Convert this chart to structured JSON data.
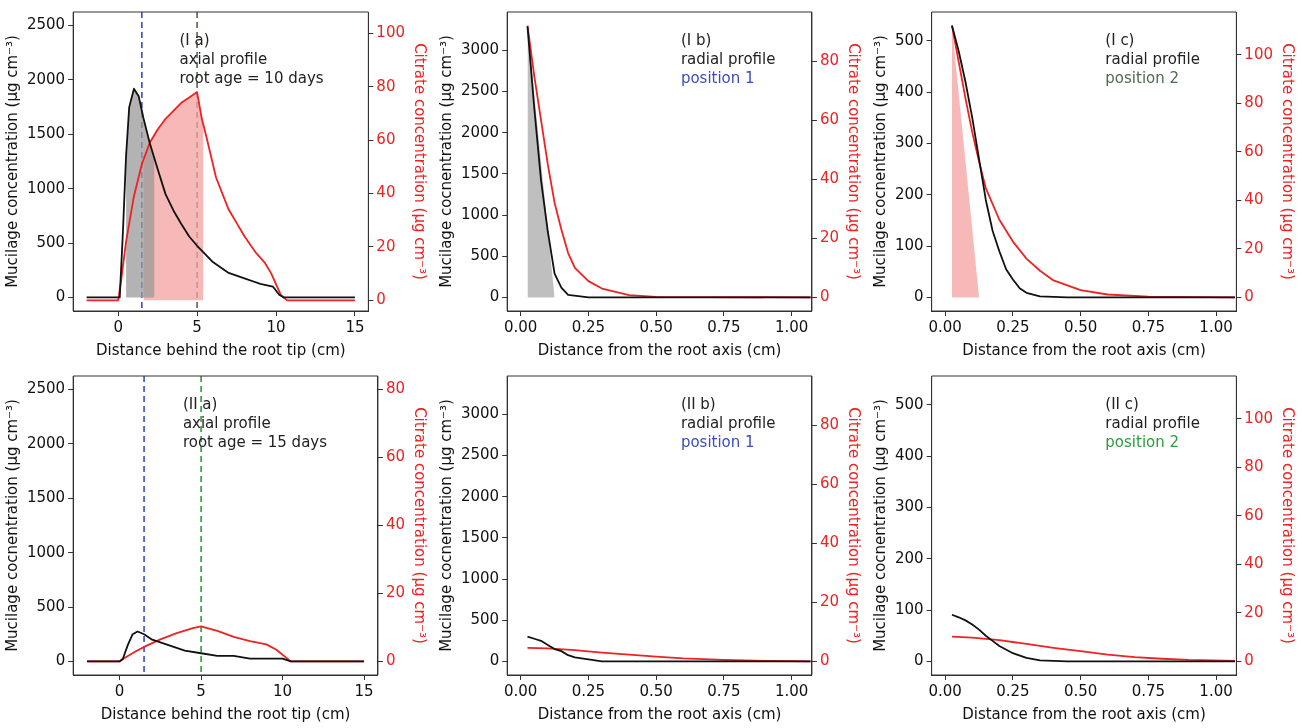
{
  "chart_data": [
    {
      "type": "line",
      "xlabel": "Distance behind the root tip (cm)",
      "ylabel": "Mucilage concentration (μg cm⁻³)",
      "y2label": "Citrate concentration (μg cm⁻³)",
      "xlim": [
        -2.85,
        15.85
      ],
      "ylim": [
        -125,
        2625
      ],
      "y2lim": [
        -4,
        108
      ],
      "xticks": [
        0,
        5,
        10,
        15
      ],
      "yticks": [
        0,
        500,
        1000,
        1500,
        2000,
        2500
      ],
      "y2ticks": [
        0,
        20,
        40,
        60,
        80,
        100
      ],
      "series": [
        {
          "type": "area",
          "color": "#999999",
          "x": [
            0.5,
            0.7,
            1.0,
            1.3,
            1.6,
            2.0,
            2.3
          ],
          "values": [
            1300,
            1750,
            1920,
            1850,
            1650,
            1420,
            1270
          ]
        },
        {
          "type": "area",
          "color": "#f4a0a0",
          "axis": "y2",
          "x": [
            1.6,
            2,
            2.5,
            3,
            3.5,
            4,
            4.5,
            5,
            5.2,
            5.4
          ],
          "values": [
            51,
            59,
            64,
            68,
            71,
            74,
            76,
            78,
            71,
            65
          ]
        },
        {
          "type": "line",
          "color": "#111111",
          "x": [
            -2,
            0,
            0.1,
            0.3,
            0.5,
            0.7,
            1.0,
            1.3,
            1.6,
            2.0,
            2.5,
            3,
            3.5,
            4,
            4.5,
            5,
            6,
            7,
            8,
            9,
            9.8,
            10.2,
            10.5,
            15
          ],
          "values": [
            0,
            0,
            0,
            600,
            1300,
            1750,
            1920,
            1850,
            1650,
            1420,
            1180,
            950,
            800,
            675,
            560,
            475,
            325,
            225,
            175,
            125,
            100,
            25,
            0,
            0
          ]
        },
        {
          "type": "line",
          "color": "#ee2222",
          "axis": "y2",
          "x": [
            -2,
            0,
            0.2,
            0.5,
            1,
            1.5,
            2,
            2.5,
            3,
            3.5,
            4,
            4.5,
            5,
            5.3,
            5.6,
            6.2,
            7,
            7.5,
            8,
            8.7,
            9.3,
            9.7,
            10.3,
            10.7,
            15
          ],
          "values": [
            0,
            0,
            8,
            22,
            39,
            51,
            59,
            64,
            68,
            71,
            74,
            76,
            78,
            68,
            61,
            46,
            34,
            29,
            24,
            18,
            14,
            10,
            2,
            0,
            0
          ]
        }
      ],
      "ref_lines": [
        {
          "axis": "x",
          "value": 1.5,
          "color": "#3b4cc0",
          "line_style": "dashed"
        },
        {
          "axis": "x",
          "value": 5,
          "color": "#4d6b4d",
          "line_style": "dashed"
        }
      ],
      "annotations": [
        "(I a)",
        "axial profile",
        "root age = 10 days"
      ]
    },
    {
      "type": "line",
      "xlabel": "Distance from the root axis (cm)",
      "ylabel": "Mucilage cocnentration (μg cm⁻³)",
      "y2label": "Citrate concentration (μg cm⁻³)",
      "xlim": [
        -0.05,
        1.075
      ],
      "ylim": [
        -165,
        3465
      ],
      "y2lim": [
        -4.6,
        96.6
      ],
      "xticks": [
        {
          "value": 0,
          "label": "0.00"
        },
        {
          "value": 0.25,
          "label": "0.25"
        },
        {
          "value": 0.5,
          "label": "0.50"
        },
        {
          "value": 0.75,
          "label": "0.75"
        },
        {
          "value": 1,
          "label": "1.00"
        }
      ],
      "yticks": [
        0,
        500,
        1000,
        1500,
        2000,
        2500,
        3000
      ],
      "y2ticks": [
        0,
        20,
        40,
        60,
        80
      ],
      "series": [
        {
          "type": "area",
          "color": "#aaaaaa",
          "x": [
            0.025,
            0.125
          ],
          "values": [
            3290,
            0
          ]
        },
        {
          "type": "line",
          "color": "#111111",
          "x": [
            0.025,
            0.05,
            0.075,
            0.1,
            0.125,
            0.15,
            0.175,
            0.25,
            1.07
          ],
          "values": [
            3290,
            2300,
            1420,
            800,
            290,
            120,
            30,
            0,
            0
          ]
        },
        {
          "type": "line",
          "color": "#ee2222",
          "axis": "y2",
          "x": [
            0.025,
            0.05,
            0.075,
            0.1,
            0.125,
            0.15,
            0.175,
            0.2,
            0.25,
            0.3,
            0.4,
            0.5,
            1.07
          ],
          "values": [
            92,
            75,
            60,
            45,
            32,
            23,
            15,
            10,
            5.5,
            3,
            0.8,
            0.2,
            0
          ]
        }
      ],
      "annotations": [
        "(I b)",
        "radial profile",
        "position 1"
      ]
    },
    {
      "type": "line",
      "xlabel": "Distance from the root axis (cm)",
      "ylabel": "Mucilage cocnentration (μg cm⁻³)",
      "y2label": "Citrate concentration (μg cm⁻³)",
      "xlim": [
        -0.05,
        1.075
      ],
      "ylim": [
        -26.5,
        556.5
      ],
      "y2lim": [
        -5.6,
        117.6
      ],
      "xticks": [
        {
          "value": 0,
          "label": "0.00"
        },
        {
          "value": 0.25,
          "label": "0.25"
        },
        {
          "value": 0.5,
          "label": "0.50"
        },
        {
          "value": 0.75,
          "label": "0.75"
        },
        {
          "value": 1,
          "label": "1.00"
        }
      ],
      "yticks": [
        0,
        100,
        200,
        300,
        400,
        500
      ],
      "y2ticks": [
        0,
        20,
        40,
        60,
        80,
        100
      ],
      "series": [
        {
          "type": "area",
          "color": "#f4a0a0",
          "axis": "y2",
          "x": [
            0.025,
            0.125
          ],
          "values": [
            112,
            0
          ]
        },
        {
          "type": "line",
          "color": "#111111",
          "x": [
            0.025,
            0.05,
            0.075,
            0.1,
            0.125,
            0.15,
            0.175,
            0.2,
            0.225,
            0.25,
            0.275,
            0.3,
            0.35,
            0.45,
            1.07
          ],
          "values": [
            530,
            480,
            420,
            350,
            270,
            190,
            130,
            90,
            55,
            35,
            18,
            9,
            2,
            0,
            0
          ]
        },
        {
          "type": "line",
          "color": "#ee2222",
          "axis": "y2",
          "x": [
            0.025,
            0.05,
            0.075,
            0.1,
            0.125,
            0.15,
            0.2,
            0.25,
            0.3,
            0.35,
            0.4,
            0.5,
            0.6,
            0.75,
            1.07
          ],
          "values": [
            112,
            97,
            82,
            68,
            56,
            45,
            32,
            23,
            16,
            11,
            7,
            3,
            1.2,
            0.3,
            0
          ]
        }
      ],
      "annotations": [
        "(I c)",
        "radial profile",
        "position 2"
      ]
    },
    {
      "type": "line",
      "xlabel": "Distance behind the root tip (cm)",
      "ylabel": "Mucilage cocnentration (μg cm⁻³)",
      "y2label": "Citrate concentration (μg cm⁻³)",
      "xlim": [
        -2.85,
        15.85
      ],
      "ylim": [
        -125,
        2625
      ],
      "y2lim": [
        -4,
        84
      ],
      "xticks": [
        0,
        5,
        10,
        15
      ],
      "yticks": [
        0,
        500,
        1000,
        1500,
        2000,
        2500
      ],
      "y2ticks": [
        0,
        20,
        40,
        60,
        80
      ],
      "series": [
        {
          "type": "line",
          "color": "#111111",
          "x": [
            -2,
            0,
            0.2,
            0.5,
            0.8,
            1.1,
            1.5,
            2,
            2.5,
            3,
            4,
            5,
            6,
            7,
            8,
            9,
            10,
            10.5,
            15
          ],
          "values": [
            0,
            0,
            25,
            150,
            250,
            275,
            250,
            200,
            175,
            150,
            100,
            75,
            50,
            50,
            25,
            25,
            25,
            0,
            0
          ]
        },
        {
          "type": "line",
          "color": "#ee2222",
          "axis": "y2",
          "x": [
            -2,
            0,
            0.3,
            1,
            1.6,
            2.5,
            3.5,
            4.5,
            5,
            6,
            7,
            8,
            9,
            9.6,
            10.5,
            11,
            15
          ],
          "values": [
            0,
            0,
            1,
            3,
            4.5,
            6.5,
            8.3,
            9.8,
            10.3,
            9,
            7.2,
            6,
            5,
            3.5,
            0,
            0,
            0
          ]
        }
      ],
      "ref_lines": [
        {
          "axis": "x",
          "value": 1.5,
          "color": "#3b4cc0",
          "line_style": "dashed"
        },
        {
          "axis": "x",
          "value": 5,
          "color": "#2a9d3a",
          "line_style": "dashed"
        }
      ],
      "annotations": [
        "(II a)",
        "axial profile",
        "root age = 15 days"
      ]
    },
    {
      "type": "line",
      "xlabel": "Distance from the root axis (cm)",
      "ylabel": "Mucilage cocnentration (μg cm⁻³)",
      "y2label": "Citrate concentration (μg cm⁻³)",
      "xlim": [
        -0.05,
        1.075
      ],
      "ylim": [
        -165,
        3465
      ],
      "y2lim": [
        -4.6,
        96.6
      ],
      "xticks": [
        {
          "value": 0,
          "label": "0.00"
        },
        {
          "value": 0.25,
          "label": "0.25"
        },
        {
          "value": 0.5,
          "label": "0.50"
        },
        {
          "value": 0.75,
          "label": "0.75"
        },
        {
          "value": 1,
          "label": "1.00"
        }
      ],
      "yticks": [
        0,
        500,
        1000,
        1500,
        2000,
        2500,
        3000
      ],
      "y2ticks": [
        0,
        20,
        40,
        60,
        80
      ],
      "series": [
        {
          "type": "line",
          "color": "#111111",
          "x": [
            0.025,
            0.05,
            0.075,
            0.1,
            0.125,
            0.15,
            0.175,
            0.2,
            0.25,
            0.3,
            0.4,
            1.07
          ],
          "values": [
            300,
            275,
            250,
            200,
            150,
            125,
            75,
            50,
            25,
            0,
            0,
            0
          ]
        },
        {
          "type": "line",
          "color": "#ee2222",
          "axis": "y2",
          "x": [
            0.025,
            0.1,
            0.2,
            0.3,
            0.4,
            0.5,
            0.6,
            0.75,
            0.9,
            1.07
          ],
          "values": [
            4.6,
            4.4,
            3.8,
            3,
            2.3,
            1.6,
            1,
            0.5,
            0.2,
            0
          ]
        }
      ],
      "annotations": [
        "(II b)",
        "radial profile",
        "position 1"
      ]
    },
    {
      "type": "line",
      "xlabel": "Distance from the root axis (cm)",
      "ylabel": "Mucilage cocnentration (μg cm⁻³)",
      "y2label": "Citrate concentration (μg cm⁻³)",
      "xlim": [
        -0.05,
        1.075
      ],
      "ylim": [
        -26.5,
        556.5
      ],
      "y2lim": [
        -5.6,
        117.6
      ],
      "xticks": [
        {
          "value": 0,
          "label": "0.00"
        },
        {
          "value": 0.25,
          "label": "0.25"
        },
        {
          "value": 0.5,
          "label": "0.50"
        },
        {
          "value": 0.75,
          "label": "0.75"
        },
        {
          "value": 1,
          "label": "1.00"
        }
      ],
      "yticks": [
        0,
        100,
        200,
        300,
        400,
        500
      ],
      "y2ticks": [
        0,
        20,
        40,
        60,
        80,
        100
      ],
      "series": [
        {
          "type": "line",
          "color": "#111111",
          "x": [
            0.025,
            0.05,
            0.075,
            0.1,
            0.125,
            0.15,
            0.175,
            0.2,
            0.25,
            0.3,
            0.35,
            0.45,
            1.07
          ],
          "values": [
            91,
            86,
            80,
            72,
            62,
            50,
            40,
            30,
            16,
            7,
            2,
            0,
            0
          ]
        },
        {
          "type": "line",
          "color": "#ee2222",
          "axis": "y2",
          "x": [
            0.025,
            0.1,
            0.2,
            0.3,
            0.4,
            0.5,
            0.6,
            0.7,
            0.8,
            0.9,
            1.07
          ],
          "values": [
            10.2,
            9.8,
            8.8,
            7.2,
            5.6,
            4.2,
            2.8,
            1.8,
            1.1,
            0.6,
            0.2
          ]
        }
      ],
      "annotations": [
        "(II c)",
        "radial profile",
        "position 2"
      ]
    }
  ]
}
